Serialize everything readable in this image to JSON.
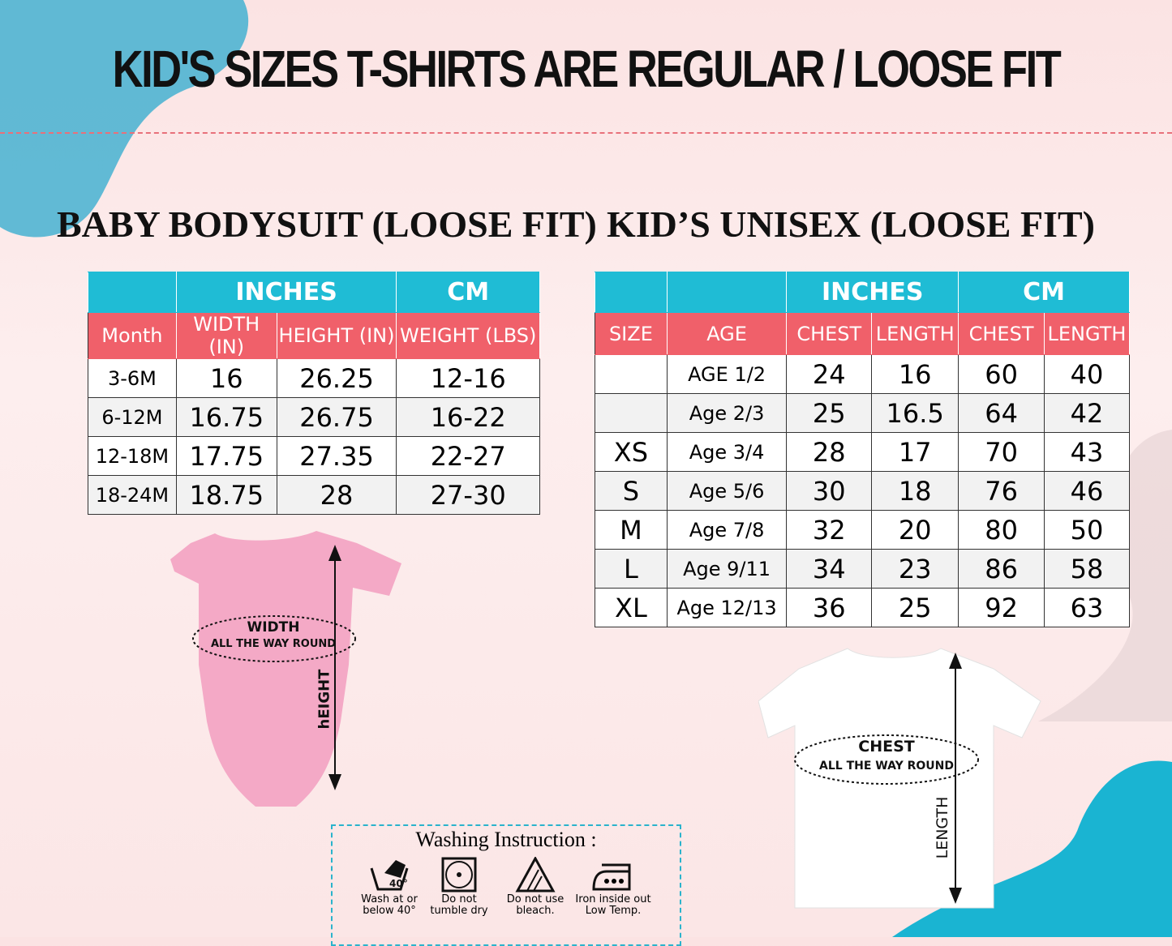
{
  "title": "KID'S SIZES T-SHIRTS ARE REGULAR / LOOSE FIT",
  "baby": {
    "heading": "BABY BODYSUIT (LOOSE FIT)",
    "group_headers": [
      "",
      "INCHES",
      "CM"
    ],
    "columns": [
      "Month",
      "WIDTH (IN)",
      "HEIGHT (IN)",
      "WEIGHT (LBS)"
    ],
    "rows": [
      [
        "3-6M",
        "16",
        "26.25",
        "12-16"
      ],
      [
        "6-12M",
        "16.75",
        "26.75",
        "16-22"
      ],
      [
        "12-18M",
        "17.75",
        "27.35",
        "22-27"
      ],
      [
        "18-24M",
        "18.75",
        "28",
        "27-30"
      ]
    ],
    "diagram": {
      "width_label": "WIDTH",
      "width_sub": "ALL THE WAY ROUND",
      "height_label": "hEIGHT"
    }
  },
  "kids": {
    "heading": "KID’S UNISEX (LOOSE FIT)",
    "group_headers": [
      "",
      "",
      "INCHES",
      "CM"
    ],
    "columns": [
      "SIZE",
      "AGE",
      "CHEST",
      "LENGTH",
      "CHEST",
      "LENGTH"
    ],
    "rows": [
      [
        "",
        "AGE 1/2",
        "24",
        "16",
        "60",
        "40"
      ],
      [
        "",
        "Age 2/3",
        "25",
        "16.5",
        "64",
        "42"
      ],
      [
        "XS",
        "Age 3/4",
        "28",
        "17",
        "70",
        "43"
      ],
      [
        "S",
        "Age 5/6",
        "30",
        "18",
        "76",
        "46"
      ],
      [
        "M",
        "Age 7/8",
        "32",
        "20",
        "80",
        "50"
      ],
      [
        "L",
        "Age 9/11",
        "34",
        "23",
        "86",
        "58"
      ],
      [
        "XL",
        "Age 12/13",
        "36",
        "25",
        "92",
        "63"
      ]
    ],
    "diagram": {
      "chest_label": "CHEST",
      "chest_sub": "ALL THE WAY ROUND",
      "length_label": "LENGTH"
    }
  },
  "washing": {
    "title": "Washing Instruction :",
    "items": [
      {
        "icon": "hand-wash-40-icon",
        "line1": "Wash at or",
        "line2": "below 40°"
      },
      {
        "icon": "no-tumble-dry-icon",
        "line1": "Do  not",
        "line2": "tumble dry"
      },
      {
        "icon": "no-bleach-icon",
        "line1": "Do not use",
        "line2": "bleach."
      },
      {
        "icon": "iron-icon",
        "line1": "Iron inside out",
        "line2": "Low Temp."
      }
    ]
  },
  "colors": {
    "header_cyan": "#1fbcd5",
    "header_coral": "#f0606a",
    "bodysuit_pink": "#f4a9c6",
    "accent_blue": "#1ab4d2"
  }
}
